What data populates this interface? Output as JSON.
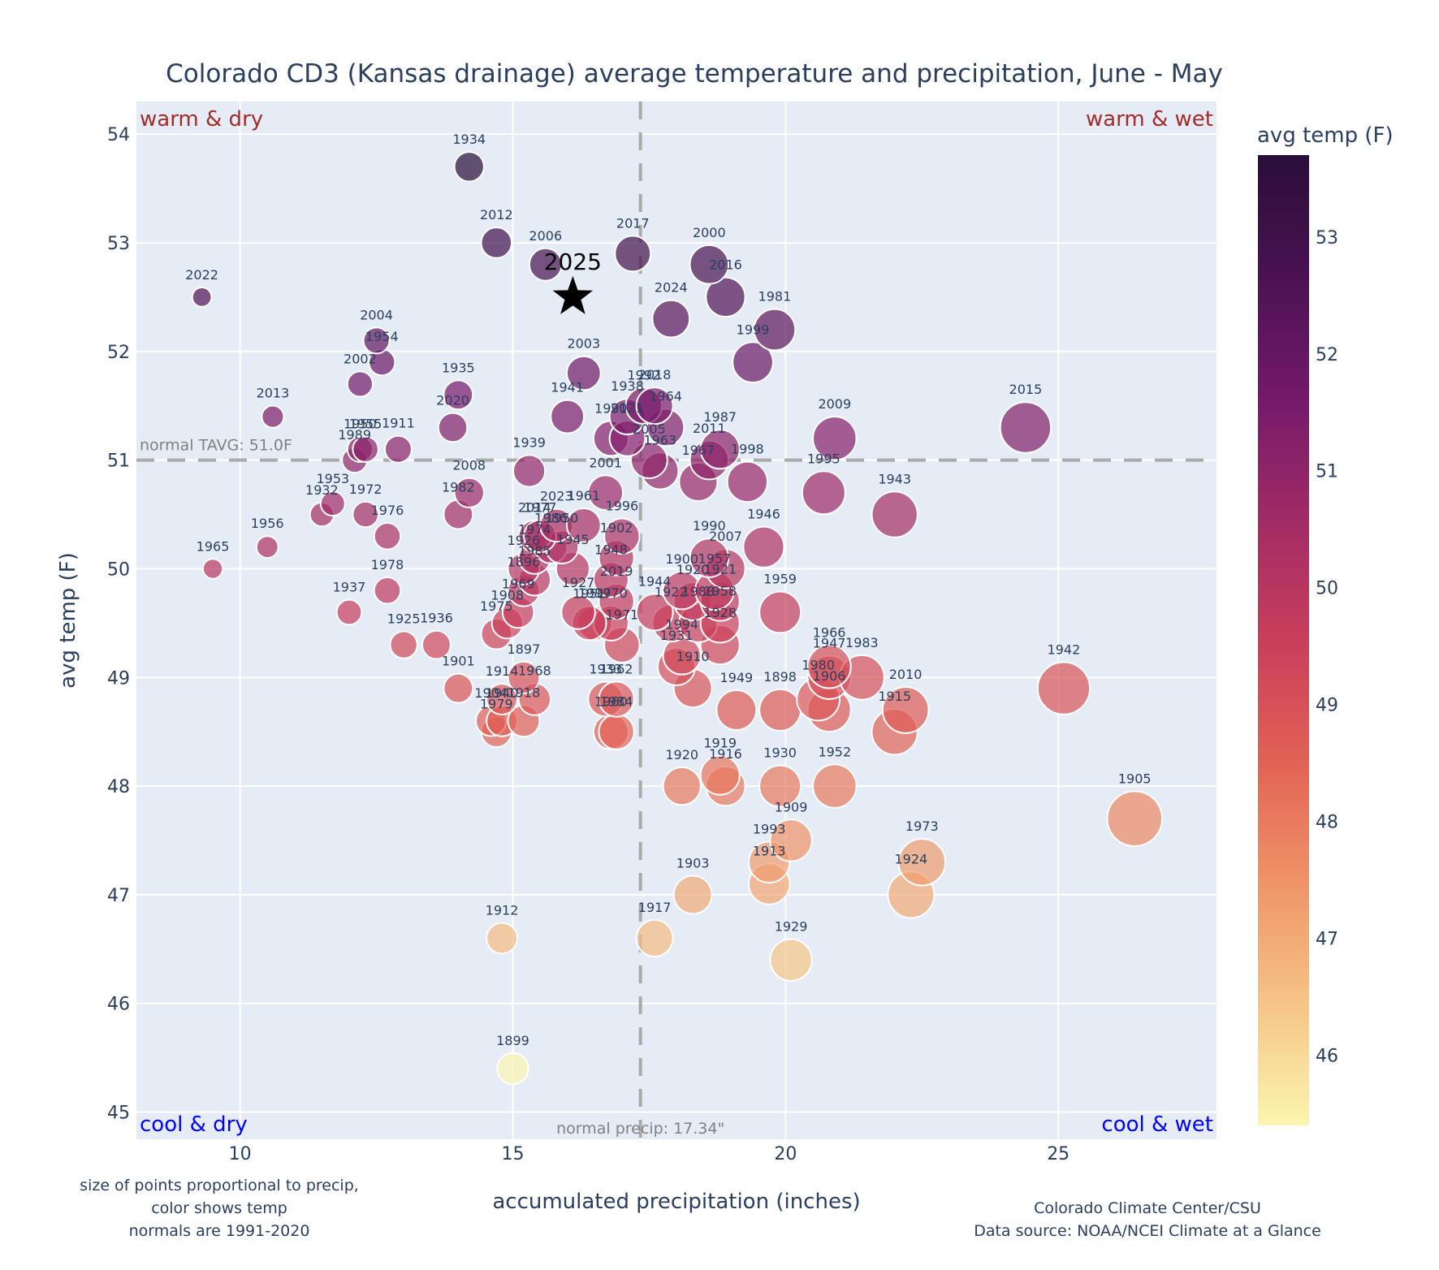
{
  "chart_data": {
    "type": "scatter",
    "title": "Colorado CD3 (Kansas drainage) average temperature and precipitation, June - May",
    "xlabel": "accumulated precipitation (inches)",
    "ylabel": "avg temp (F)",
    "xlim": [
      8.1,
      27.9
    ],
    "ylim": [
      44.75,
      54.3
    ],
    "xticks": [
      10,
      15,
      20,
      25
    ],
    "yticks": [
      45,
      46,
      47,
      48,
      49,
      50,
      51,
      52,
      53,
      54
    ],
    "grid": true,
    "normals": {
      "tavg": 51.0,
      "tavg_label": "normal TAVG: 51.0F",
      "precip": 17.34,
      "precip_label": "normal precip: 17.34\""
    },
    "quadrants": {
      "top_left": "warm & dry",
      "top_right": "warm & wet",
      "bottom_left": "cool & dry",
      "bottom_right": "cool & wet"
    },
    "colorbar": {
      "title": "avg temp (F)",
      "range": [
        45.4,
        53.7
      ],
      "ticks": [
        46,
        47,
        48,
        49,
        50,
        51,
        52,
        53
      ],
      "colors": [
        "#fcf5b0",
        "#f6c486",
        "#ef9468",
        "#e26255",
        "#c93e5b",
        "#a12b66",
        "#74196b",
        "#4a1251",
        "#2a0d3b"
      ]
    },
    "current_year": {
      "year": "2025",
      "x": 16.1,
      "y": 52.5,
      "marker": "star"
    },
    "points": [
      {
        "year": "1934",
        "x": 14.2,
        "y": 53.7
      },
      {
        "year": "2012",
        "x": 14.7,
        "y": 53.0
      },
      {
        "year": "2006",
        "x": 15.6,
        "y": 52.8
      },
      {
        "year": "2017",
        "x": 17.2,
        "y": 52.9
      },
      {
        "year": "2000",
        "x": 18.6,
        "y": 52.8
      },
      {
        "year": "2016",
        "x": 18.9,
        "y": 52.5
      },
      {
        "year": "2024",
        "x": 17.9,
        "y": 52.3
      },
      {
        "year": "1981",
        "x": 19.8,
        "y": 52.2
      },
      {
        "year": "1999",
        "x": 19.4,
        "y": 51.9
      },
      {
        "year": "2022",
        "x": 9.3,
        "y": 52.5
      },
      {
        "year": "2004",
        "x": 12.5,
        "y": 52.1
      },
      {
        "year": "1954",
        "x": 12.6,
        "y": 51.9
      },
      {
        "year": "2002",
        "x": 12.2,
        "y": 51.7
      },
      {
        "year": "1935",
        "x": 14.0,
        "y": 51.6
      },
      {
        "year": "2020",
        "x": 13.9,
        "y": 51.3
      },
      {
        "year": "2013",
        "x": 10.6,
        "y": 51.4
      },
      {
        "year": "1950",
        "x": 12.2,
        "y": 51.1
      },
      {
        "year": "1989",
        "x": 12.1,
        "y": 51.0
      },
      {
        "year": "1955",
        "x": 12.3,
        "y": 51.1
      },
      {
        "year": "1911",
        "x": 12.9,
        "y": 51.1
      },
      {
        "year": "2003",
        "x": 16.3,
        "y": 51.8
      },
      {
        "year": "1941",
        "x": 16.0,
        "y": 51.4
      },
      {
        "year": "1938",
        "x": 17.1,
        "y": 51.4
      },
      {
        "year": "1992",
        "x": 17.4,
        "y": 51.5
      },
      {
        "year": "2018",
        "x": 17.6,
        "y": 51.5
      },
      {
        "year": "1991",
        "x": 16.8,
        "y": 51.2
      },
      {
        "year": "2021",
        "x": 17.1,
        "y": 51.2
      },
      {
        "year": "1964",
        "x": 17.8,
        "y": 51.3
      },
      {
        "year": "2005",
        "x": 17.5,
        "y": 51.0
      },
      {
        "year": "2011",
        "x": 18.6,
        "y": 51.0
      },
      {
        "year": "1987",
        "x": 18.8,
        "y": 51.1
      },
      {
        "year": "1967",
        "x": 18.4,
        "y": 50.8
      },
      {
        "year": "1998",
        "x": 19.3,
        "y": 50.8
      },
      {
        "year": "1963",
        "x": 17.7,
        "y": 50.9
      },
      {
        "year": "1939",
        "x": 15.3,
        "y": 50.9
      },
      {
        "year": "2009",
        "x": 20.9,
        "y": 51.2
      },
      {
        "year": "2015",
        "x": 24.4,
        "y": 51.3
      },
      {
        "year": "1995",
        "x": 20.7,
        "y": 50.7
      },
      {
        "year": "1943",
        "x": 22.0,
        "y": 50.5
      },
      {
        "year": "2008",
        "x": 14.2,
        "y": 50.7
      },
      {
        "year": "1982",
        "x": 14.0,
        "y": 50.5
      },
      {
        "year": "1953",
        "x": 11.7,
        "y": 50.6
      },
      {
        "year": "1932",
        "x": 11.5,
        "y": 50.5
      },
      {
        "year": "1972",
        "x": 12.3,
        "y": 50.5
      },
      {
        "year": "1976",
        "x": 12.7,
        "y": 50.3
      },
      {
        "year": "1956",
        "x": 10.5,
        "y": 50.2
      },
      {
        "year": "1965",
        "x": 9.5,
        "y": 50.0
      },
      {
        "year": "1978",
        "x": 12.7,
        "y": 49.8
      },
      {
        "year": "1937",
        "x": 12.0,
        "y": 49.6
      },
      {
        "year": "2014",
        "x": 15.4,
        "y": 50.3
      },
      {
        "year": "2023",
        "x": 15.8,
        "y": 50.4
      },
      {
        "year": "2001",
        "x": 16.7,
        "y": 50.7
      },
      {
        "year": "1996",
        "x": 17.0,
        "y": 50.3
      },
      {
        "year": "1986",
        "x": 15.7,
        "y": 50.2
      },
      {
        "year": "1977",
        "x": 15.5,
        "y": 50.3
      },
      {
        "year": "1961",
        "x": 16.3,
        "y": 50.4
      },
      {
        "year": "1902",
        "x": 16.9,
        "y": 50.1
      },
      {
        "year": "1974",
        "x": 15.4,
        "y": 50.1
      },
      {
        "year": "1950b",
        "x": 15.9,
        "y": 50.2
      },
      {
        "year": "1945",
        "x": 16.1,
        "y": 50.0
      },
      {
        "year": "1948",
        "x": 16.8,
        "y": 49.9
      },
      {
        "year": "1926",
        "x": 15.2,
        "y": 50.0
      },
      {
        "year": "1985",
        "x": 15.4,
        "y": 49.9
      },
      {
        "year": "2019",
        "x": 16.9,
        "y": 49.7
      },
      {
        "year": "1896",
        "x": 15.2,
        "y": 49.8
      },
      {
        "year": "1969",
        "x": 15.1,
        "y": 49.6
      },
      {
        "year": "1908",
        "x": 14.9,
        "y": 49.5
      },
      {
        "year": "1927",
        "x": 16.2,
        "y": 49.6
      },
      {
        "year": "1997",
        "x": 16.5,
        "y": 49.5
      },
      {
        "year": "1970",
        "x": 16.8,
        "y": 49.5
      },
      {
        "year": "1951",
        "x": 16.4,
        "y": 49.5
      },
      {
        "year": "1971",
        "x": 17.0,
        "y": 49.3
      },
      {
        "year": "1944",
        "x": 17.6,
        "y": 49.6
      },
      {
        "year": "1922",
        "x": 17.9,
        "y": 49.5
      },
      {
        "year": "1990",
        "x": 18.6,
        "y": 50.1
      },
      {
        "year": "1900",
        "x": 18.1,
        "y": 49.8
      },
      {
        "year": "1920b",
        "x": 18.3,
        "y": 49.7
      },
      {
        "year": "1957",
        "x": 18.7,
        "y": 49.8
      },
      {
        "year": "1921",
        "x": 18.8,
        "y": 49.7
      },
      {
        "year": "1959",
        "x": 19.9,
        "y": 49.6
      },
      {
        "year": "1946",
        "x": 19.6,
        "y": 50.2
      },
      {
        "year": "2007",
        "x": 18.9,
        "y": 50.0
      },
      {
        "year": "1988",
        "x": 18.4,
        "y": 49.5
      },
      {
        "year": "1958",
        "x": 18.8,
        "y": 49.5
      },
      {
        "year": "1994",
        "x": 18.1,
        "y": 49.2
      },
      {
        "year": "1931",
        "x": 18.0,
        "y": 49.1
      },
      {
        "year": "1928",
        "x": 18.8,
        "y": 49.3
      },
      {
        "year": "1910",
        "x": 18.3,
        "y": 48.9
      },
      {
        "year": "1949",
        "x": 19.1,
        "y": 48.7
      },
      {
        "year": "1898",
        "x": 19.9,
        "y": 48.7
      },
      {
        "year": "1925",
        "x": 13.0,
        "y": 49.3
      },
      {
        "year": "1936",
        "x": 13.6,
        "y": 49.3
      },
      {
        "year": "1901",
        "x": 14.0,
        "y": 48.9
      },
      {
        "year": "1975",
        "x": 14.7,
        "y": 49.4
      },
      {
        "year": "1897",
        "x": 15.2,
        "y": 49.0
      },
      {
        "year": "1914",
        "x": 14.8,
        "y": 48.8
      },
      {
        "year": "1968",
        "x": 15.4,
        "y": 48.8
      },
      {
        "year": "1904",
        "x": 14.6,
        "y": 48.6
      },
      {
        "year": "1940",
        "x": 14.8,
        "y": 48.6
      },
      {
        "year": "1918",
        "x": 15.2,
        "y": 48.6
      },
      {
        "year": "1979",
        "x": 14.7,
        "y": 48.5
      },
      {
        "year": "1933",
        "x": 16.7,
        "y": 48.8
      },
      {
        "year": "1962",
        "x": 16.9,
        "y": 48.8
      },
      {
        "year": "1960",
        "x": 16.8,
        "y": 48.5
      },
      {
        "year": "1984",
        "x": 16.9,
        "y": 48.5
      },
      {
        "year": "1966",
        "x": 20.8,
        "y": 49.1
      },
      {
        "year": "1947",
        "x": 20.8,
        "y": 49.0
      },
      {
        "year": "1983",
        "x": 21.4,
        "y": 49.0
      },
      {
        "year": "1980",
        "x": 20.6,
        "y": 48.8
      },
      {
        "year": "1906",
        "x": 20.8,
        "y": 48.7
      },
      {
        "year": "2010",
        "x": 22.2,
        "y": 48.7
      },
      {
        "year": "1915",
        "x": 22.0,
        "y": 48.5
      },
      {
        "year": "1942",
        "x": 25.1,
        "y": 48.9
      },
      {
        "year": "1920",
        "x": 18.1,
        "y": 48.0
      },
      {
        "year": "1919",
        "x": 18.8,
        "y": 48.1
      },
      {
        "year": "1916",
        "x": 18.9,
        "y": 48.0
      },
      {
        "year": "1930",
        "x": 19.9,
        "y": 48.0
      },
      {
        "year": "1952",
        "x": 20.9,
        "y": 48.0
      },
      {
        "year": "1909",
        "x": 20.1,
        "y": 47.5
      },
      {
        "year": "1993",
        "x": 19.7,
        "y": 47.3
      },
      {
        "year": "1913",
        "x": 19.7,
        "y": 47.1
      },
      {
        "year": "1973",
        "x": 22.5,
        "y": 47.3
      },
      {
        "year": "1924",
        "x": 22.3,
        "y": 47.0
      },
      {
        "year": "1903",
        "x": 18.3,
        "y": 47.0
      },
      {
        "year": "1905",
        "x": 26.4,
        "y": 47.7
      },
      {
        "year": "1912",
        "x": 14.8,
        "y": 46.6
      },
      {
        "year": "1917",
        "x": 17.6,
        "y": 46.6
      },
      {
        "year": "1929",
        "x": 20.1,
        "y": 46.4
      },
      {
        "year": "1899",
        "x": 15.0,
        "y": 45.4
      }
    ]
  },
  "footer": {
    "note_lines": [
      "size of points proportional to precip,",
      "color shows temp",
      "normals are 1991-2020"
    ],
    "credit_lines": [
      "Colorado Climate Center/CSU",
      "Data source: NOAA/NCEI Climate at a Glance"
    ]
  }
}
